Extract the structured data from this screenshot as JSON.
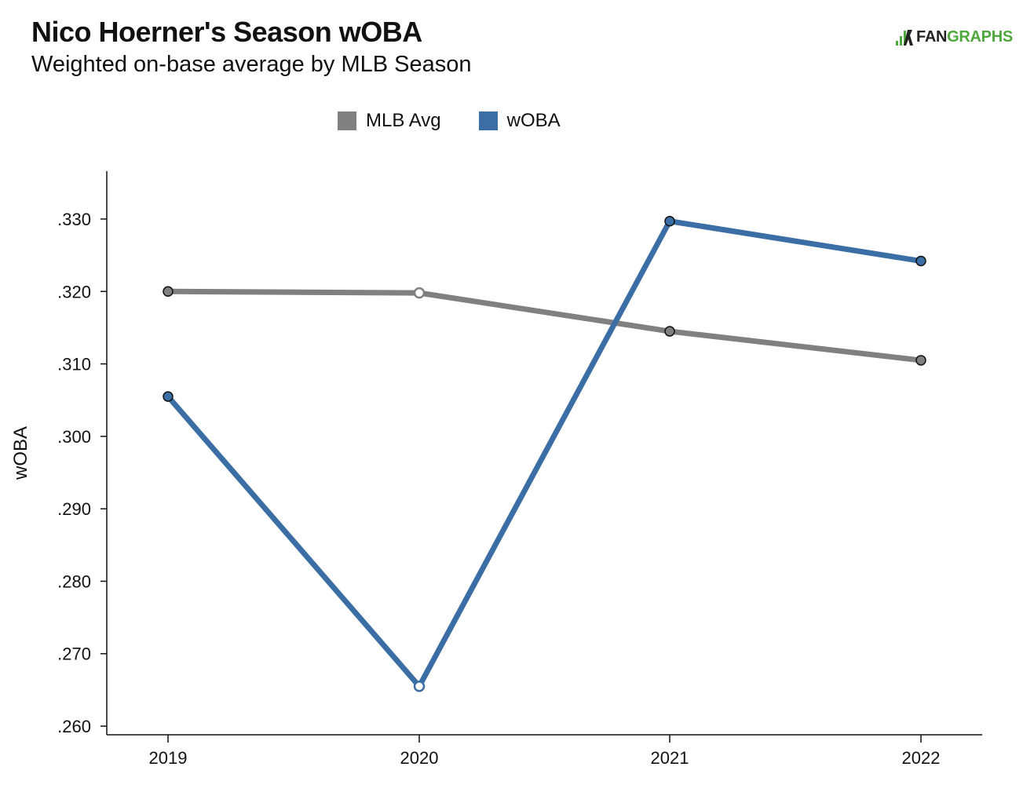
{
  "header": {
    "title": "Nico Hoerner's Season wOBA",
    "subtitle": "Weighted on-base average by MLB Season",
    "logo_text_dark": "FAN",
    "logo_text_green": "GRAPHS"
  },
  "colors": {
    "mlb_avg": "#808080",
    "woba": "#3b6ea5",
    "logo_green": "#4fa83d"
  },
  "chart_data": {
    "type": "line",
    "title": "Nico Hoerner's Season wOBA",
    "subtitle": "Weighted on-base average by MLB Season",
    "xlabel": "",
    "ylabel": "wOBA",
    "categories": [
      "2019",
      "2020",
      "2021",
      "2022"
    ],
    "series": [
      {
        "name": "MLB Avg",
        "values": [
          0.32,
          0.3198,
          0.3145,
          0.3105
        ],
        "color": "#808080"
      },
      {
        "name": "wOBA",
        "values": [
          0.3055,
          0.2655,
          0.3297,
          0.3242
        ],
        "color": "#3b6ea5"
      }
    ],
    "ylim": [
      0.2585,
      0.3355
    ],
    "yticks": [
      0.26,
      0.27,
      0.28,
      0.29,
      0.3,
      0.31,
      0.32,
      0.33
    ],
    "ytick_labels": [
      ".260",
      ".270",
      ".280",
      ".290",
      ".300",
      ".310",
      ".320",
      ".330"
    ],
    "hollow_points": [
      1
    ],
    "legend_position": "top-center",
    "grid": false
  }
}
